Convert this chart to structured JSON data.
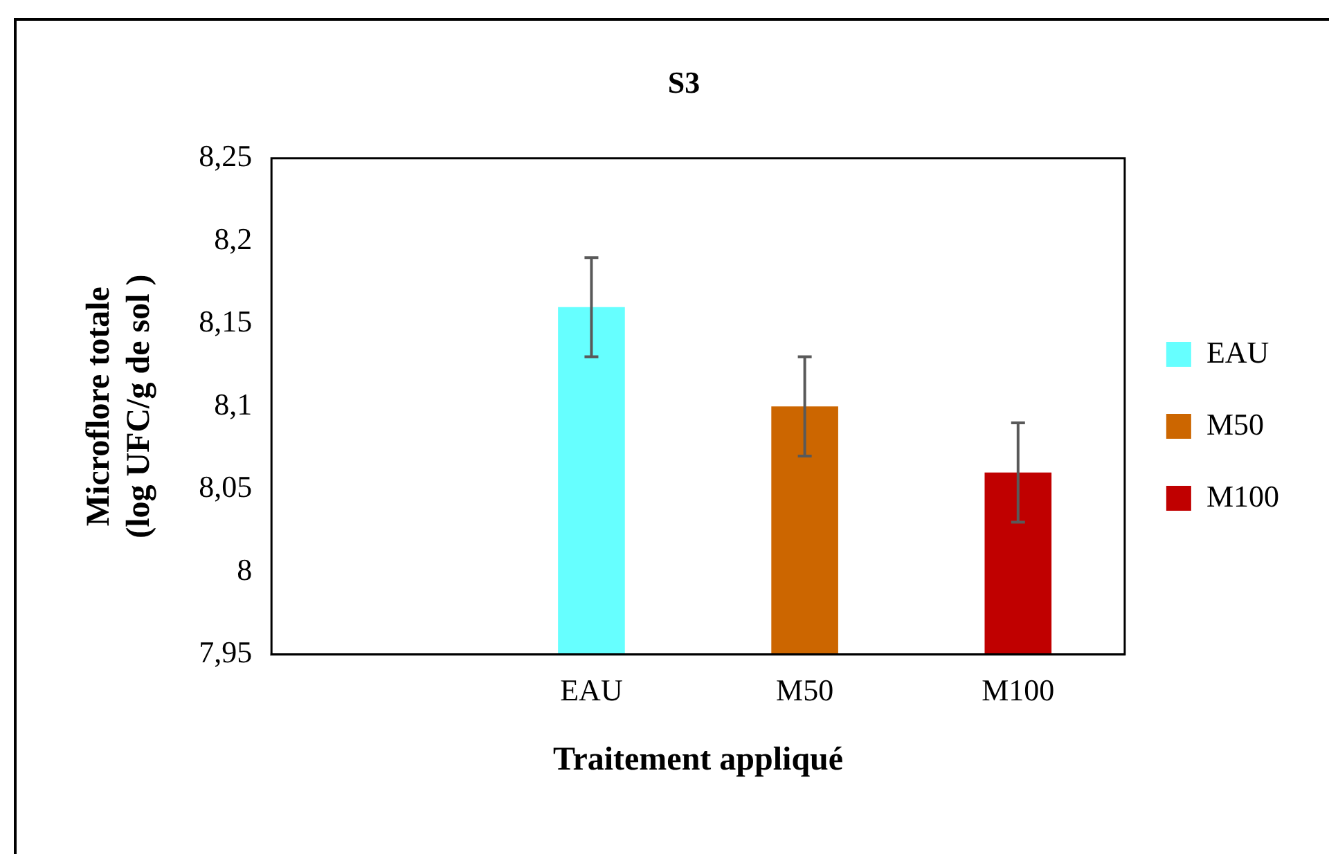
{
  "chart_data": {
    "type": "bar",
    "title": "S3",
    "xlabel": "Traitement appliqué",
    "ylabel": "Microflore totale\n(log UFC/g de sol )",
    "categories": [
      null,
      "EAU",
      "M50",
      "M100"
    ],
    "series": [
      {
        "name": "EAU",
        "color": "#66ffff",
        "values": [
          null,
          8.16,
          null,
          null
        ],
        "errors": [
          null,
          0.03,
          null,
          null
        ]
      },
      {
        "name": "M50",
        "color": "#cc6600",
        "values": [
          null,
          null,
          8.1,
          null
        ],
        "errors": [
          null,
          null,
          0.03,
          null
        ]
      },
      {
        "name": "M100",
        "color": "#c00000",
        "values": [
          null,
          null,
          null,
          8.06
        ],
        "errors": [
          null,
          null,
          null,
          0.03
        ]
      }
    ],
    "ylim": [
      7.95,
      8.25
    ],
    "yticks": [
      {
        "value": 7.95,
        "label": "7,95"
      },
      {
        "value": 8,
        "label": "8"
      },
      {
        "value": 8.05,
        "label": "8,05"
      },
      {
        "value": 8.1,
        "label": "8,1"
      },
      {
        "value": 8.15,
        "label": "8,15"
      },
      {
        "value": 8.2,
        "label": "8,2"
      },
      {
        "value": 8.25,
        "label": "8,25"
      }
    ],
    "grid": false,
    "legend": "right"
  }
}
